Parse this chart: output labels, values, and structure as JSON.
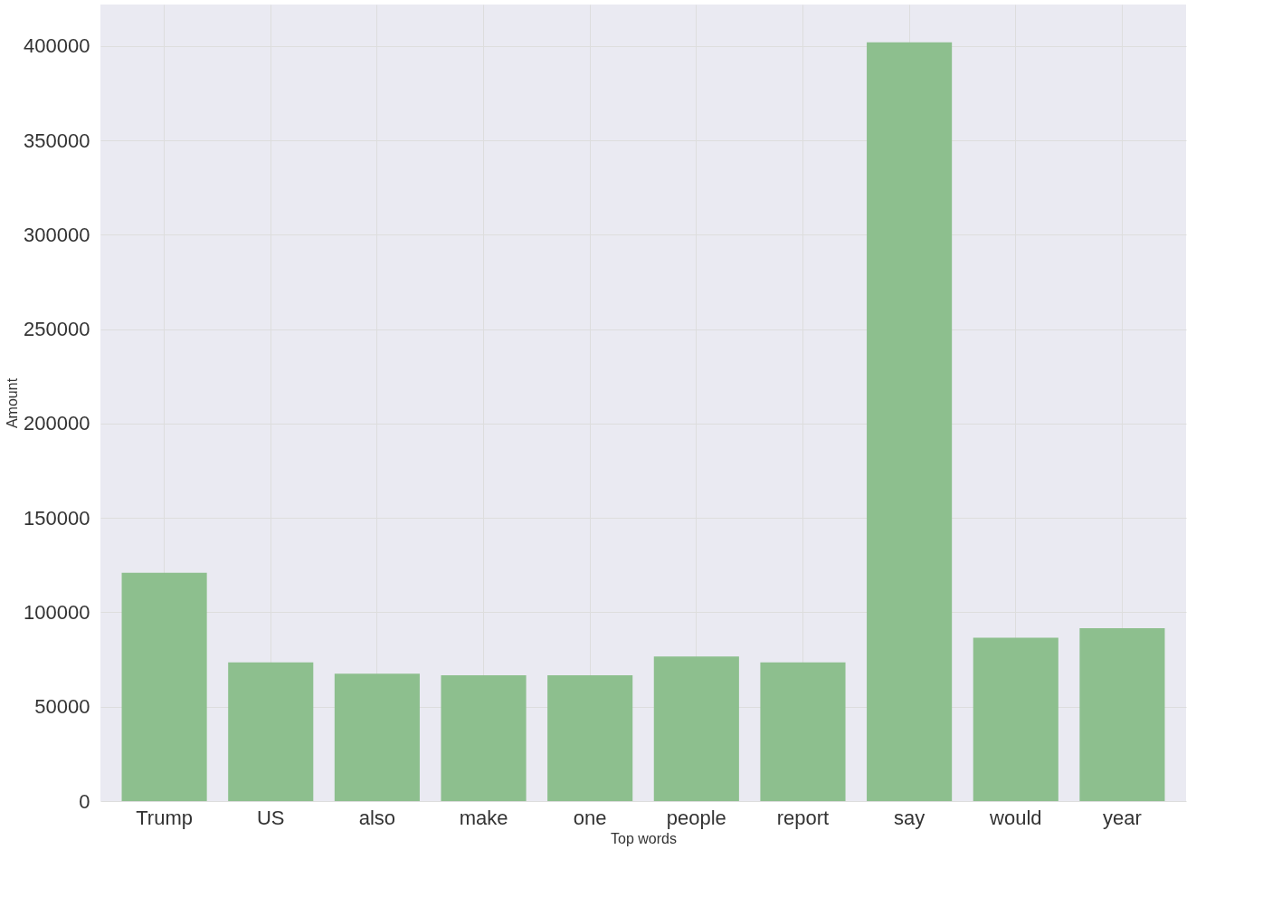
{
  "chart_data": {
    "type": "bar",
    "xlabel": "Top words",
    "ylabel": "Amount",
    "categories": [
      "Trump",
      "US",
      "also",
      "make",
      "one",
      "people",
      "report",
      "say",
      "would",
      "year"
    ],
    "values": [
      121000,
      73500,
      67500,
      66700,
      66700,
      76600,
      73500,
      402000,
      86600,
      91600
    ],
    "color": "#8dbf8e",
    "ylim": [
      0,
      422000
    ],
    "yticks": [
      0,
      50000,
      100000,
      150000,
      200000,
      250000,
      300000,
      350000,
      400000
    ],
    "grid": true
  }
}
